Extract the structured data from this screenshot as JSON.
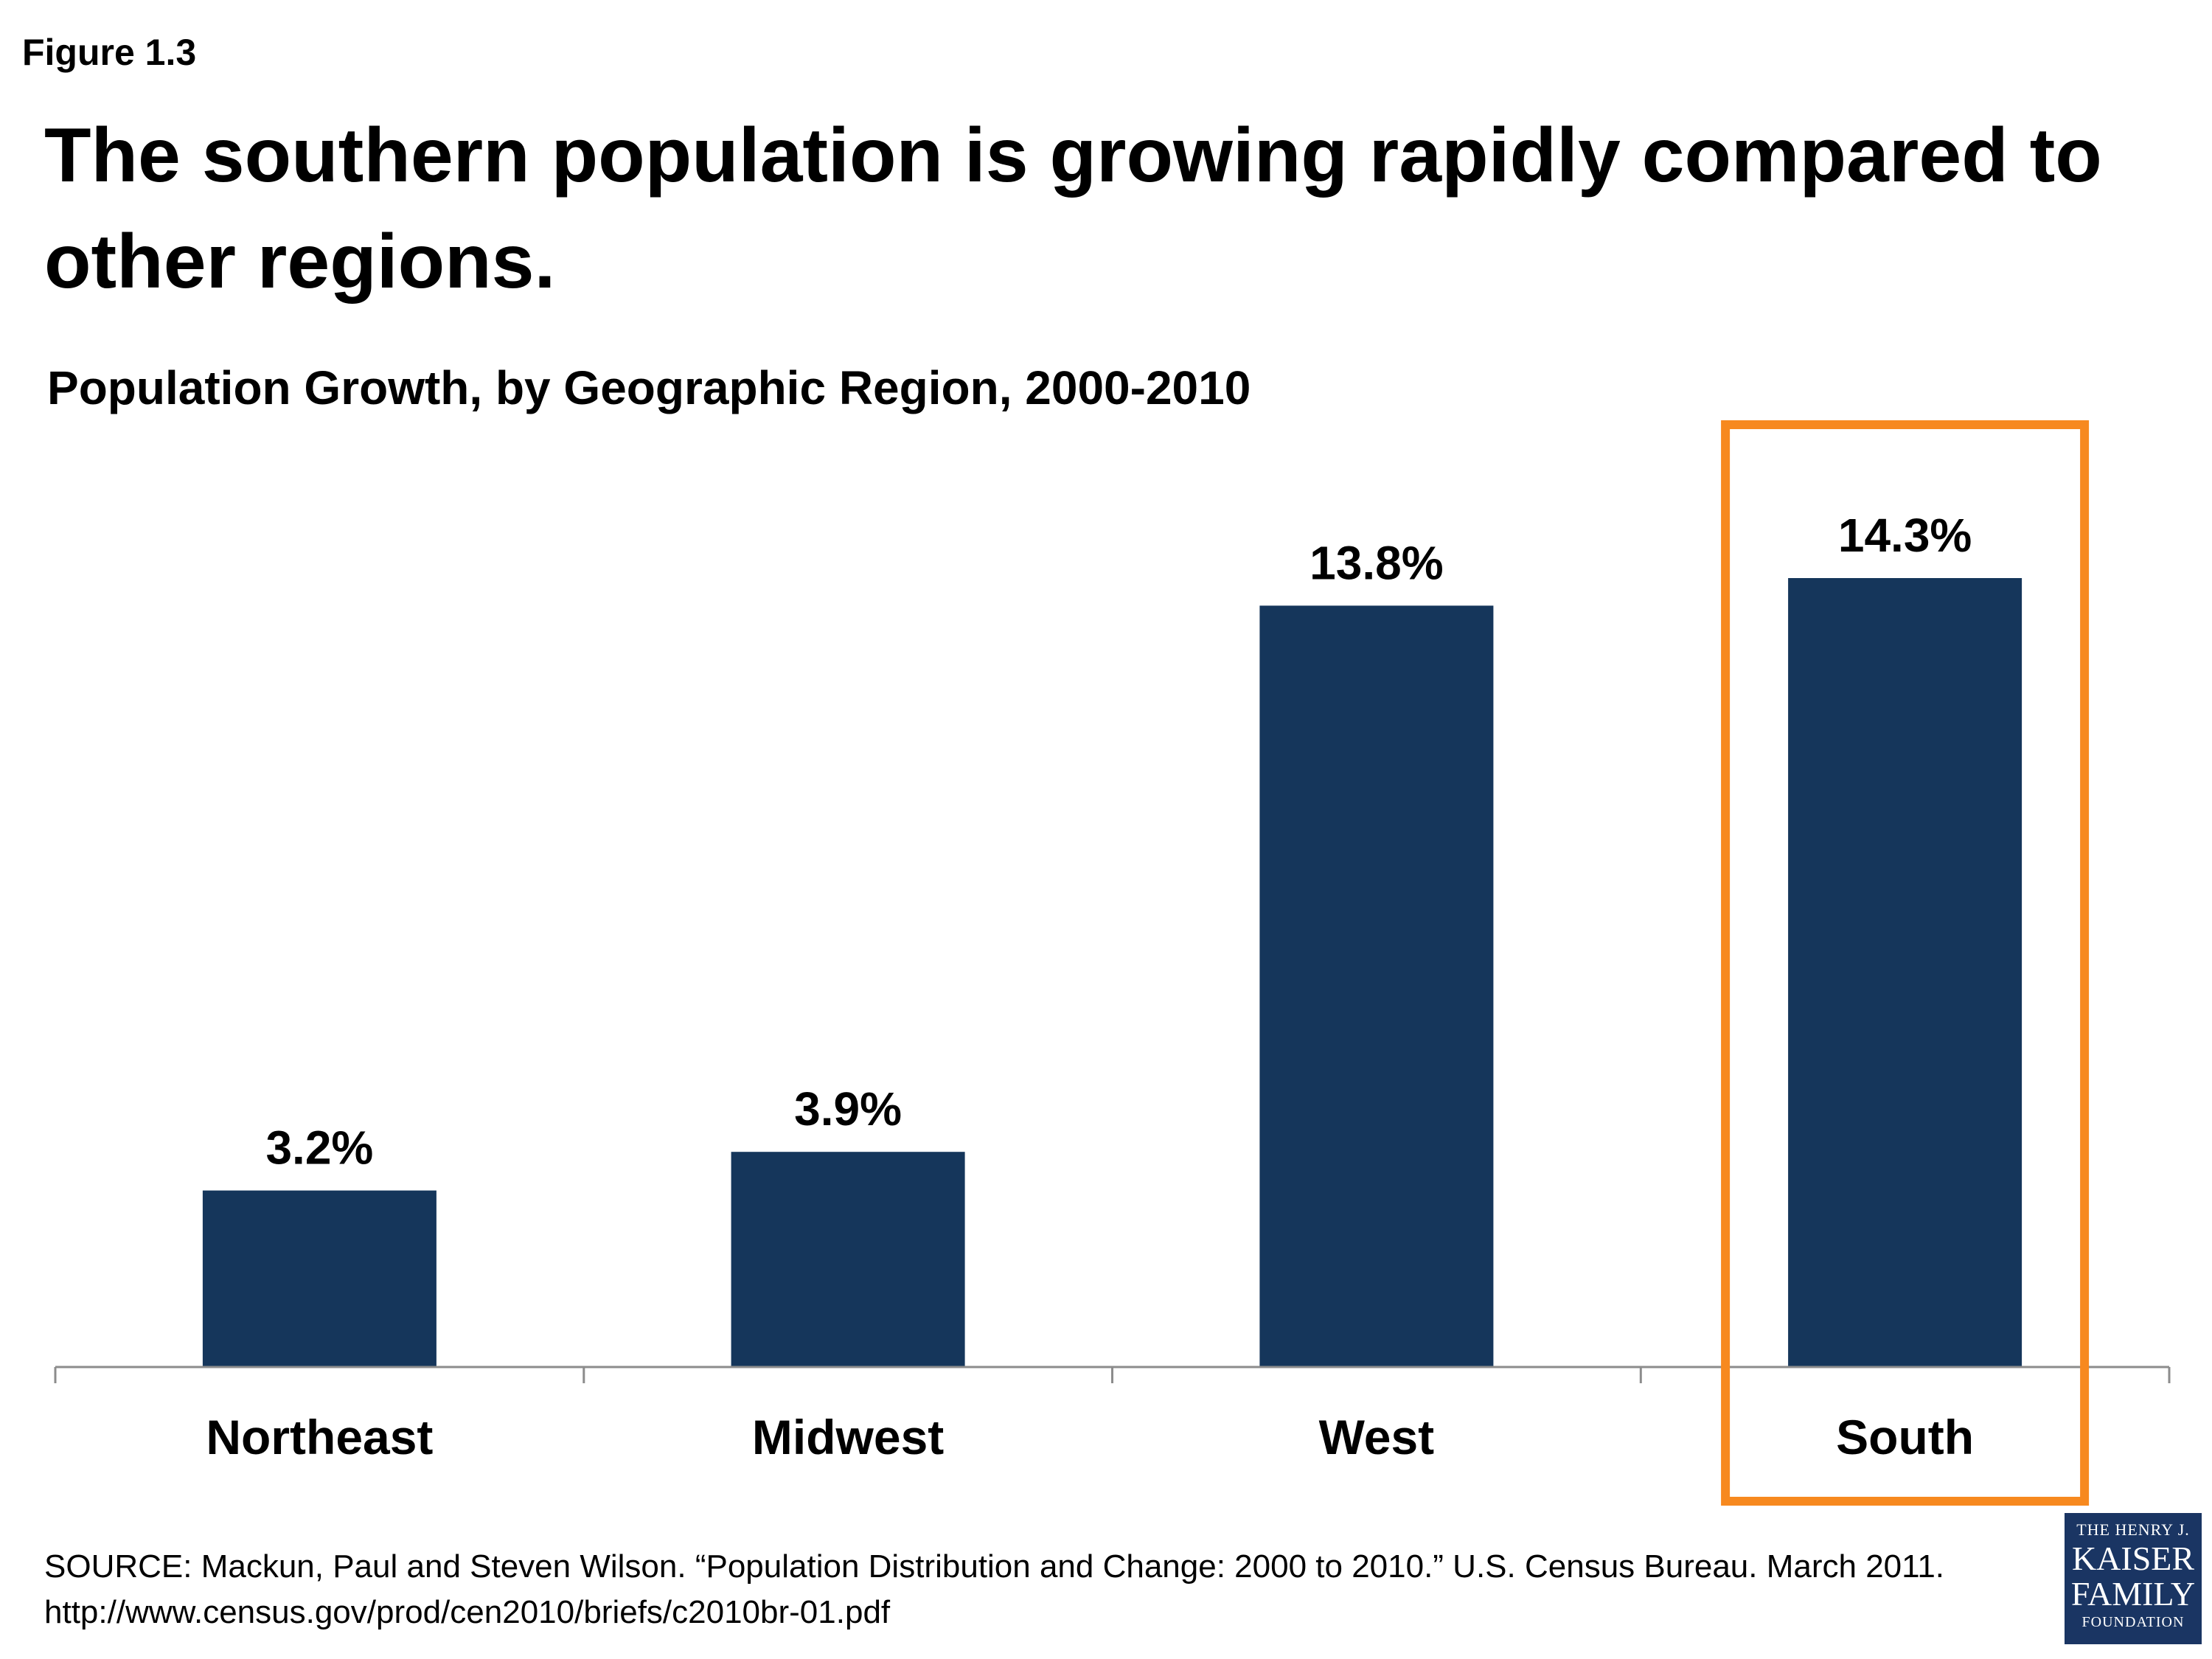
{
  "figure_label": "Figure 1.3",
  "title": "The southern population is growing rapidly compared to other regions.",
  "colors": {
    "bar": "#15365b",
    "highlight": "#f7891f",
    "axis": "#8c8c8c"
  },
  "chart_data": {
    "type": "bar",
    "title": "Population Growth, by Geographic Region, 2000-2010",
    "xlabel": "",
    "ylabel": "",
    "categories": [
      "Northeast",
      "Midwest",
      "West",
      "South"
    ],
    "values": [
      3.2,
      3.9,
      13.8,
      14.3
    ],
    "value_labels": [
      "3.2%",
      "3.9%",
      "13.8%",
      "14.3%"
    ],
    "ylim": [
      0,
      14.3
    ],
    "grid": false,
    "legend": "none",
    "highlighted_category": "South"
  },
  "source": {
    "line1": "SOURCE: Mackun, Paul and Steven Wilson. “Population Distribution and Change: 2000 to 2010.” U.S. Census Bureau. March 2011.",
    "line2": "http://www.census.gov/prod/cen2010/briefs/c2010br-01.pdf"
  },
  "logo": {
    "line1": "THE HENRY J.",
    "line2": "KAISER",
    "line3": "FAMILY",
    "line4": "FOUNDATION"
  }
}
